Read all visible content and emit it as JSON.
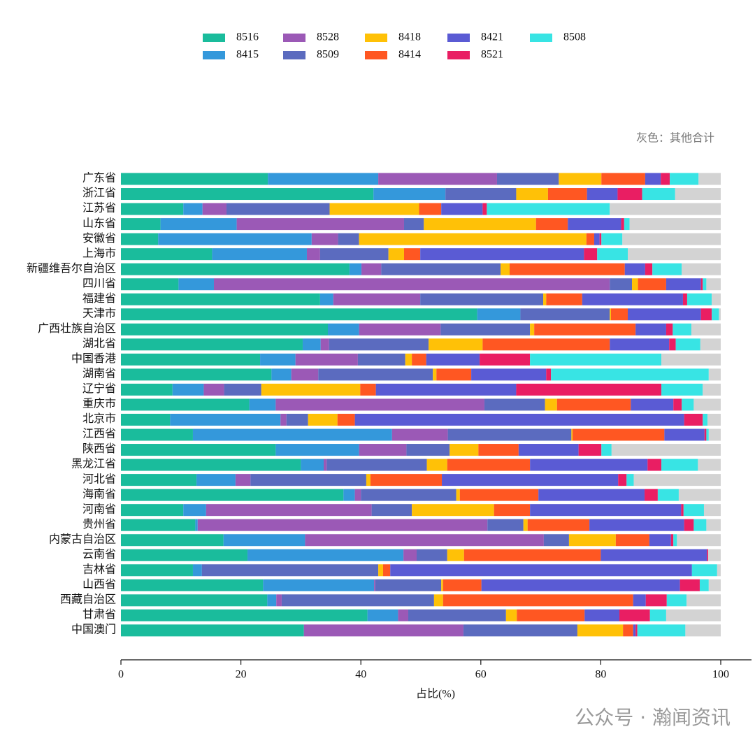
{
  "chart_data": {
    "type": "stacked-bar-horizontal",
    "categories": [
      "广东省",
      "浙江省",
      "江苏省",
      "山东省",
      "安徽省",
      "上海市",
      "新疆维吾尔自治区",
      "四川省",
      "福建省",
      "天津市",
      "广西壮族自治区",
      "湖北省",
      "中国香港",
      "湖南省",
      "辽宁省",
      "重庆市",
      "北京市",
      "江西省",
      "陕西省",
      "黑龙江省",
      "河北省",
      "海南省",
      "河南省",
      "贵州省",
      "内蒙古自治区",
      "云南省",
      "吉林省",
      "山西省",
      "西藏自治区",
      "甘肃省",
      "中国澳门"
    ],
    "series": [
      {
        "name": "8516",
        "color": "#1abc9c",
        "values": [
          24.5,
          42.1,
          10.4,
          6.6,
          6.2,
          15.2,
          38.1,
          9.6,
          33.2,
          59.4,
          34.5,
          30.3,
          23.2,
          25.1,
          8.6,
          21.4,
          8.2,
          12.0,
          25.8,
          30.0,
          12.6,
          37.1,
          10.4,
          12.4,
          17.1,
          21.1,
          12.0,
          23.7,
          24.4,
          41.1,
          30.5
        ]
      },
      {
        "name": "8415",
        "color": "#3498db",
        "values": [
          18.4,
          12.0,
          3.2,
          12.7,
          25.6,
          15.8,
          2.0,
          5.9,
          2.2,
          7.2,
          5.2,
          3.0,
          5.9,
          3.3,
          5.2,
          4.4,
          18.4,
          33.2,
          13.9,
          3.8,
          6.5,
          1.9,
          3.8,
          0.4,
          13.6,
          26.0,
          1.5,
          18.5,
          1.5,
          5.1,
          0
        ]
      },
      {
        "name": "8528",
        "color": "#9b59b6",
        "values": [
          19.8,
          0,
          4.0,
          27.9,
          4.4,
          2.2,
          3.3,
          66.0,
          14.5,
          0,
          13.6,
          1.4,
          10.4,
          4.5,
          3.4,
          34.8,
          1.0,
          9.3,
          7.9,
          0.5,
          2.5,
          1.0,
          27.6,
          48.3,
          39.8,
          2.2,
          0,
          0.2,
          0.9,
          1.7,
          26.6
        ]
      },
      {
        "name": "8509",
        "color": "#5b6bbf",
        "values": [
          10.3,
          11.8,
          17.2,
          3.3,
          3.5,
          11.4,
          19.9,
          3.7,
          20.5,
          14.9,
          14.9,
          16.6,
          7.9,
          19.1,
          6.2,
          10.1,
          3.6,
          20.6,
          7.2,
          16.7,
          19.3,
          15.9,
          6.7,
          6.0,
          4.2,
          5.1,
          29.4,
          11.0,
          25.4,
          16.3,
          19.0
        ]
      },
      {
        "name": "8418",
        "color": "#ffc107",
        "values": [
          7.1,
          5.3,
          14.9,
          18.7,
          37.9,
          2.6,
          1.5,
          1.0,
          0.5,
          0.2,
          0.7,
          9.0,
          1.1,
          0.6,
          16.5,
          2.0,
          4.9,
          0.2,
          4.8,
          3.4,
          0.7,
          0.6,
          13.7,
          0.7,
          7.8,
          2.8,
          0.8,
          0.3,
          1.5,
          1.8,
          7.6
        ]
      },
      {
        "name": "8414",
        "color": "#ff5722",
        "values": [
          7.3,
          6.5,
          3.7,
          5.3,
          1.3,
          2.7,
          19.2,
          4.7,
          6.0,
          2.8,
          16.9,
          21.2,
          2.4,
          5.8,
          2.6,
          12.3,
          2.9,
          15.3,
          6.7,
          13.8,
          11.9,
          13.1,
          6.0,
          10.3,
          5.6,
          22.8,
          1.2,
          6.4,
          31.7,
          11.3,
          1.7
        ]
      },
      {
        "name": "8421",
        "color": "#5a5bd4",
        "values": [
          2.6,
          5.1,
          6.9,
          8.9,
          0.9,
          27.3,
          3.4,
          5.8,
          16.8,
          12.2,
          5.1,
          9.9,
          8.9,
          12.5,
          23.4,
          7.1,
          54.9,
          6.7,
          10.0,
          19.6,
          29.4,
          17.7,
          25.2,
          15.8,
          3.6,
          17.7,
          50.3,
          33.1,
          2.1,
          5.8,
          0.4
        ]
      },
      {
        "name": "8521",
        "color": "#e91e63",
        "values": [
          1.5,
          4.1,
          0.7,
          0.5,
          0.3,
          2.2,
          1.2,
          0.3,
          0.7,
          1.8,
          1.1,
          1.1,
          8.4,
          0.8,
          24.2,
          1.4,
          3.1,
          0.3,
          3.8,
          2.3,
          1.4,
          2.2,
          0.4,
          1.6,
          0.4,
          0.2,
          0,
          3.3,
          3.5,
          5.1,
          0.3
        ]
      },
      {
        "name": "8508",
        "color": "#38e4e4",
        "values": [
          4.8,
          5.5,
          20.5,
          0.9,
          3.5,
          5.1,
          4.9,
          0.6,
          4.1,
          1.2,
          3.1,
          4.1,
          21.9,
          26.3,
          6.9,
          2.0,
          0.8,
          0.4,
          1.7,
          6.1,
          1.2,
          3.5,
          3.4,
          2.1,
          0.6,
          0,
          4.2,
          1.5,
          3.3,
          2.7,
          8.0
        ]
      }
    ],
    "other": {
      "color": "#d3d3d3",
      "values": [
        3.7,
        7.6,
        18.5,
        15.2,
        16.4,
        15.5,
        6.5,
        2.4,
        1.5,
        0.3,
        4.9,
        3.4,
        9.9,
        2.0,
        3.0,
        4.5,
        2.2,
        2.0,
        18.2,
        3.8,
        14.5,
        7.0,
        2.8,
        2.4,
        7.3,
        2.1,
        0.6,
        2.0,
        5.7,
        9.1,
        5.9
      ]
    },
    "annotation": "灰色：其他合计",
    "xlabel": "占比(%)",
    "xlim": [
      0,
      100
    ],
    "xticks": [
      0,
      20,
      40,
      60,
      80,
      100
    ],
    "watermark": "公众号 · 瀚闻资讯"
  }
}
